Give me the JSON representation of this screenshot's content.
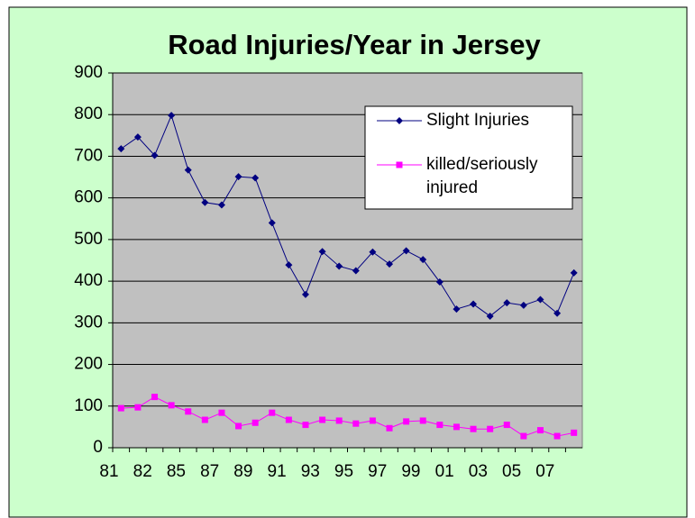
{
  "chart_data": {
    "type": "line",
    "title": "Road Injuries/Year in Jersey",
    "categories": [
      "81",
      null,
      "82",
      null,
      "85",
      null,
      "87",
      null,
      "89",
      null,
      "91",
      null,
      "93",
      null,
      "95",
      null,
      "97",
      null,
      "99",
      null,
      "01",
      null,
      "03",
      null,
      "05",
      null,
      "07",
      null
    ],
    "series": [
      {
        "name": "Slight Injuries",
        "color": "#000080",
        "marker": "diamond",
        "values": [
          718,
          746,
          702,
          798,
          667,
          589,
          583,
          651,
          648,
          540,
          439,
          368,
          471,
          436,
          425,
          470,
          441,
          473,
          452,
          398,
          333,
          345,
          316,
          348,
          342,
          356,
          323,
          420
        ]
      },
      {
        "name": "killed/seriously injured",
        "color": "#ff00ff",
        "marker": "square",
        "values": [
          95,
          97,
          122,
          102,
          87,
          67,
          84,
          52,
          60,
          84,
          67,
          55,
          67,
          65,
          58,
          65,
          47,
          63,
          65,
          55,
          50,
          45,
          45,
          55,
          28,
          42,
          28,
          36
        ]
      }
    ],
    "ylim": [
      0,
      900
    ],
    "yticks": [
      0,
      100,
      200,
      300,
      400,
      500,
      600,
      700,
      800,
      900
    ],
    "grid": true
  }
}
